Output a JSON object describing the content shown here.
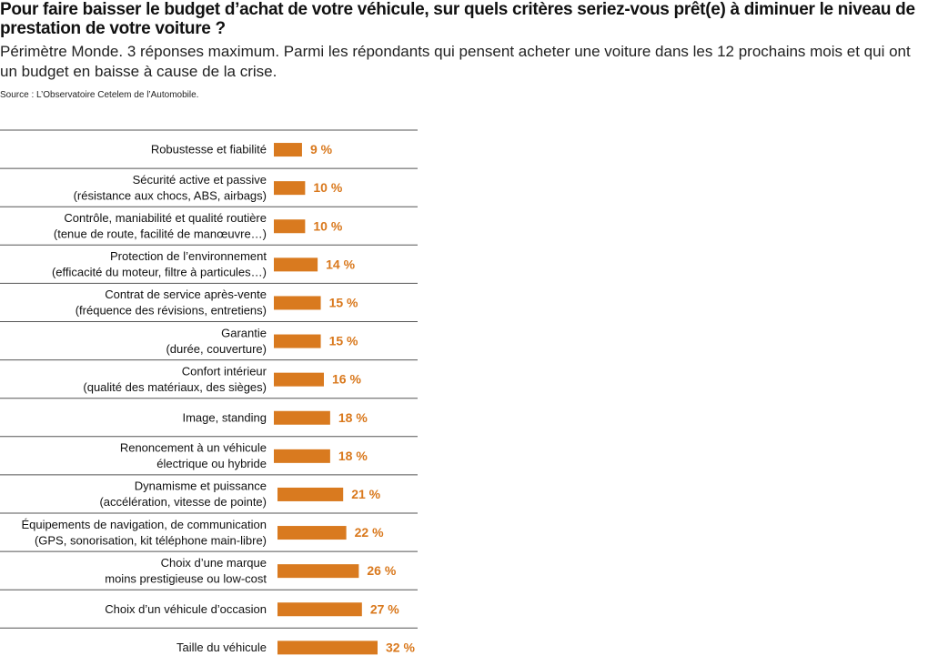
{
  "title": "Pour faire baisser le budget d’achat de votre véhicule, sur quels critères seriez-vous prêt(e) à diminuer le niveau de prestation de votre voiture ?",
  "subtitle": "Périmètre Monde. 3 réponses maximum. Parmi les répondants qui pensent acheter une voiture dans les 12 prochains mois et qui ont un budget en baisse à cause de la crise.",
  "source": "Source : L’Observatoire Cetelem de l’Automobile.",
  "colors": {
    "bar": "#d97a1f",
    "value_text": "#d9781c",
    "divider": "#555555"
  },
  "chart_data": {
    "type": "bar",
    "orientation": "horizontal",
    "unit": "%",
    "categories": [
      [
        "Robustesse et fiabilité"
      ],
      [
        "Sécurité active et passive",
        "(résistance aux chocs, ABS, airbags)"
      ],
      [
        "Contrôle, maniabilité et qualité routière",
        "(tenue de route, facilité de manœuvre…)"
      ],
      [
        "Protection de l’environnement",
        "(efficacité du moteur, filtre à particules…)"
      ],
      [
        "Contrat de service après-vente",
        "(fréquence des révisions, entretiens)"
      ],
      [
        "Garantie",
        "(durée, couverture)"
      ],
      [
        "Confort intérieur",
        "(qualité des matériaux, des sièges)"
      ],
      [
        "Image, standing"
      ],
      [
        "Renoncement à un véhicule",
        "électrique ou hybride"
      ],
      [
        "Dynamisme et puissance",
        "(accélération, vitesse de pointe)"
      ],
      [
        "Équipements de navigation, de communication",
        "(GPS, sonorisation, kit téléphone main-libre)"
      ],
      [
        "Choix d’une marque",
        "moins prestigieuse ou low-cost"
      ],
      [
        "Choix d’un véhicule d’occasion"
      ],
      [
        "Taille du véhicule"
      ]
    ],
    "values": [
      9,
      10,
      10,
      14,
      15,
      15,
      16,
      18,
      18,
      21,
      22,
      26,
      27,
      32
    ],
    "value_labels": [
      "9 %",
      "10 %",
      "10 %",
      "14 %",
      "15 %",
      "15 %",
      "16 %",
      "18 %",
      "18 %",
      "21 %",
      "22 %",
      "26 %",
      "27 %",
      "32 %"
    ],
    "xlim": [
      0,
      32
    ],
    "grid": false,
    "legend": "none"
  }
}
